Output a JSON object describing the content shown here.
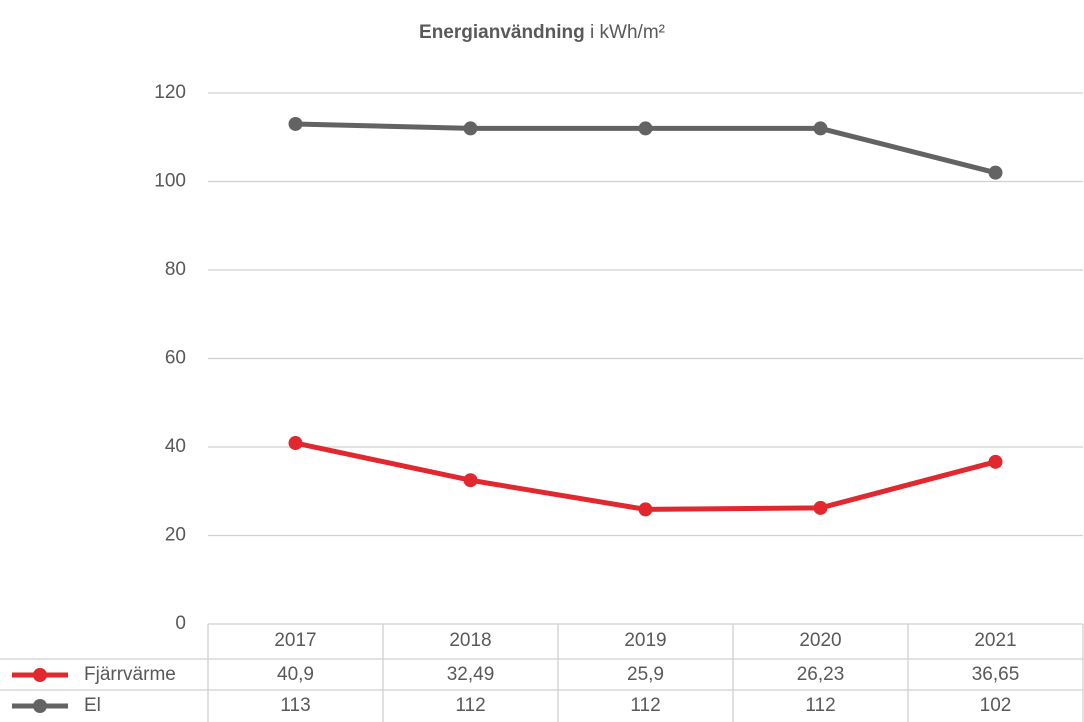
{
  "chart_data": {
    "type": "line",
    "title": "Energianvändning",
    "title_unit": "i kWh/m²",
    "categories": [
      "2017",
      "2018",
      "2019",
      "2020",
      "2021"
    ],
    "series": [
      {
        "name": "Fjärrvärme",
        "color": "#e0282e",
        "values": [
          40.9,
          32.49,
          25.9,
          26.23,
          36.65
        ],
        "value_labels": [
          "40,9",
          "32,49",
          "25,9",
          "26,23",
          "36,65"
        ]
      },
      {
        "name": "El",
        "color": "#636363",
        "values": [
          113,
          112,
          112,
          112,
          102
        ]
      }
    ],
    "ylim": [
      0,
      120
    ],
    "yticks": [
      0,
      20,
      40,
      60,
      80,
      100,
      120
    ],
    "grid": true
  }
}
